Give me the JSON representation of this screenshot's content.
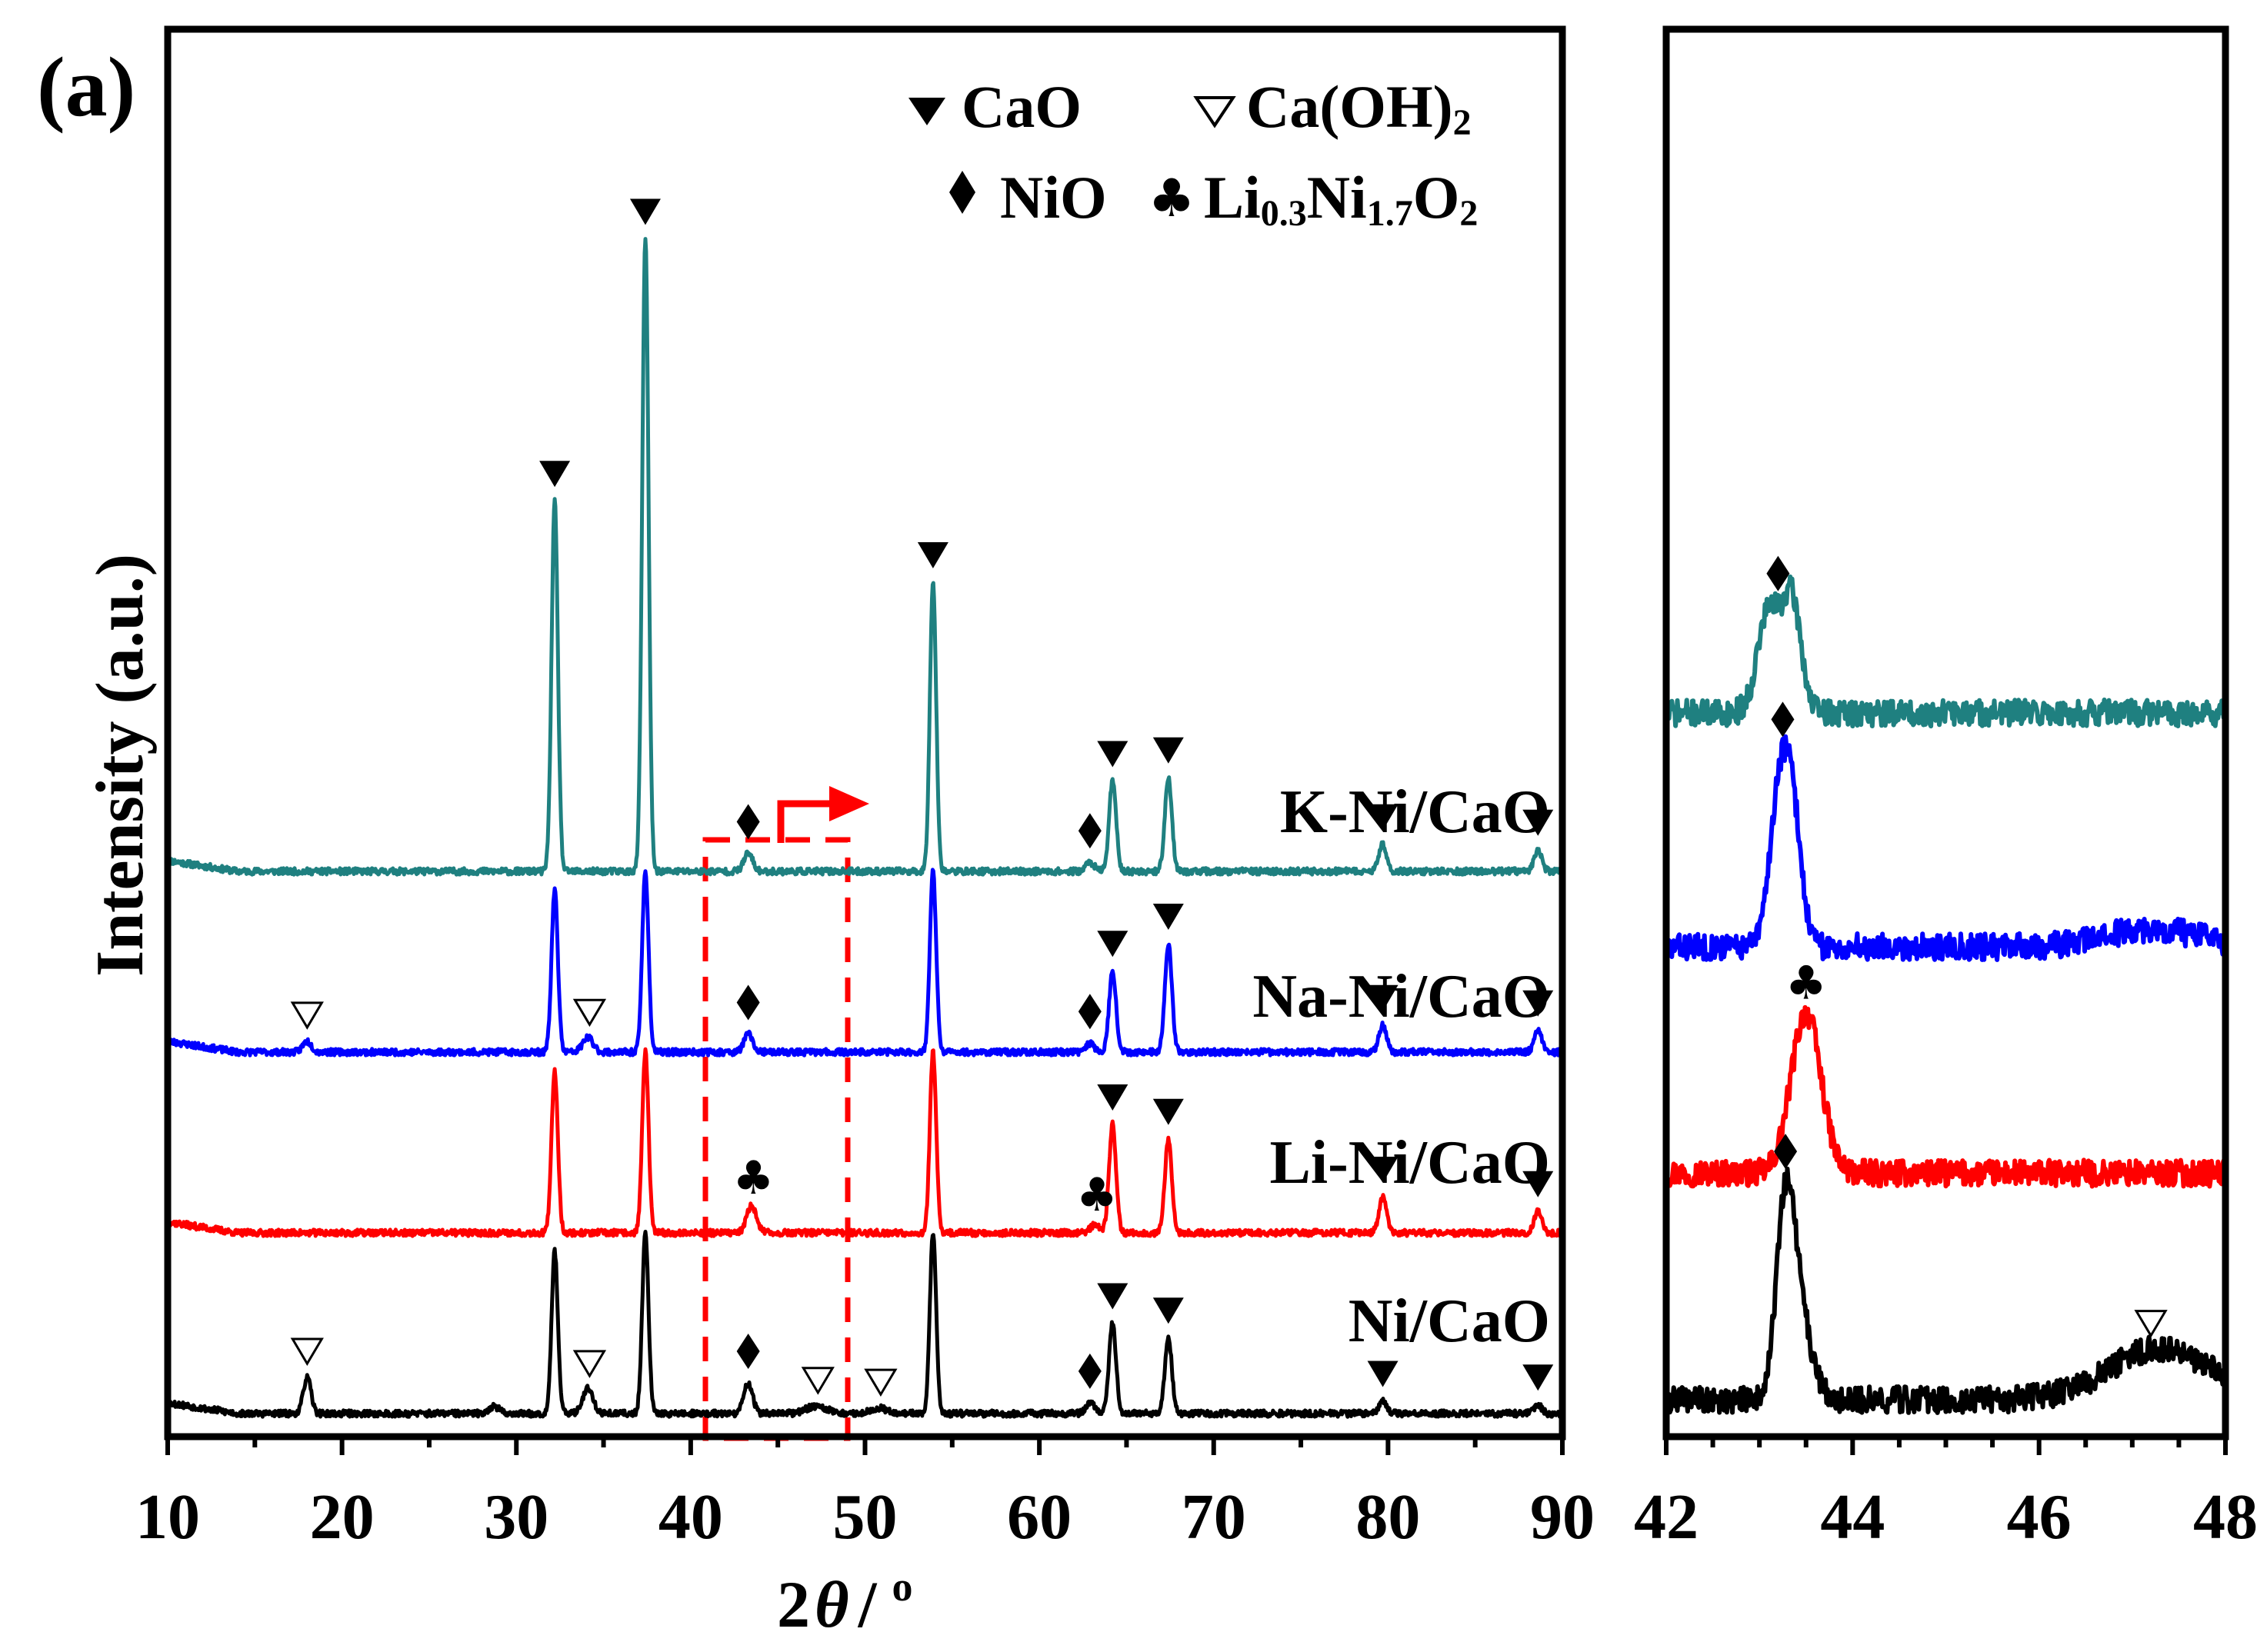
{
  "panel_label": "(a)",
  "legend": {
    "cao": "CaO",
    "caoh2": "Ca(OH)",
    "caoh2_sub": "2",
    "nio": "NiO",
    "li_a": "Li",
    "li_s1": "0.3",
    "li_b": "Ni",
    "li_s2": "1.7",
    "li_c": "O",
    "li_s3": "2"
  },
  "ylabel": "Intensity (a.u.)",
  "xlabel": {
    "num": "2",
    "theta": "θ",
    "slash": "/",
    "deg": "o"
  },
  "series_labels": {
    "k": "K-Ni/CaO",
    "na": "Na-Ni/CaO",
    "li": "Li-Ni/CaO",
    "ni": "Ni/CaO"
  },
  "colors": {
    "k": "#1f8080",
    "na": "#0000ff",
    "li": "#ff0000",
    "ni": "#000000",
    "zoom_box": "#ff0000"
  },
  "chart_data": [
    {
      "type": "line",
      "title": "",
      "xlabel": "2θ / o",
      "ylabel": "Intensity (a.u.)",
      "xlim": [
        10,
        90
      ],
      "x_ticks": [
        10,
        20,
        30,
        40,
        50,
        60,
        70,
        80,
        90
      ],
      "tick_labels": [
        "10",
        "20",
        "30",
        "40",
        "50",
        "60",
        "70",
        "80",
        "90"
      ],
      "zoom_region": [
        41,
        49
      ],
      "series": [
        {
          "name": "K-Ni/CaO",
          "key": "k",
          "offset": 3.0,
          "noise_seed": 11,
          "peaks": [
            [
              32.2,
              2.05,
              0.18
            ],
            [
              37.4,
              3.5,
              0.18
            ],
            [
              43.3,
              0.1,
              0.25
            ],
            [
              53.9,
              1.6,
              0.18
            ],
            [
              62.9,
              0.05,
              0.25
            ],
            [
              64.2,
              0.5,
              0.2
            ],
            [
              67.4,
              0.52,
              0.2
            ],
            [
              79.7,
              0.15,
              0.22
            ],
            [
              88.6,
              0.12,
              0.22
            ]
          ],
          "markers": [
            [
              "CaO",
              32.2
            ],
            [
              "CaO",
              37.4
            ],
            [
              "NiO",
              43.3
            ],
            [
              "CaO",
              53.9
            ],
            [
              "NiO",
              62.9
            ],
            [
              "CaO",
              64.2
            ],
            [
              "CaO",
              67.4
            ],
            [
              "CaO",
              79.7
            ],
            [
              "CaO",
              88.6
            ]
          ]
        },
        {
          "name": "Na-Ni/CaO",
          "key": "na",
          "offset": 2.0,
          "noise_seed": 23,
          "peaks": [
            [
              18.0,
              0.06,
              0.25
            ],
            [
              32.2,
              0.9,
              0.18
            ],
            [
              34.1,
              0.08,
              0.3
            ],
            [
              37.4,
              1.0,
              0.18
            ],
            [
              43.3,
              0.1,
              0.25
            ],
            [
              53.9,
              1.0,
              0.18
            ],
            [
              62.9,
              0.05,
              0.25
            ],
            [
              64.2,
              0.45,
              0.2
            ],
            [
              67.4,
              0.6,
              0.2
            ],
            [
              79.7,
              0.15,
              0.22
            ],
            [
              88.6,
              0.12,
              0.22
            ]
          ],
          "markers": [
            [
              "Ca(OH)2",
              18.0
            ],
            [
              "Ca(OH)2",
              34.2
            ],
            [
              "NiO",
              43.3
            ],
            [
              "NiO",
              62.9
            ],
            [
              "CaO",
              64.2
            ],
            [
              "CaO",
              67.4
            ],
            [
              "CaO",
              79.7
            ],
            [
              "CaO",
              88.6
            ]
          ]
        },
        {
          "name": "Li-Ni/CaO",
          "key": "li",
          "offset": 1.0,
          "noise_seed": 37,
          "peaks": [
            [
              32.2,
              0.9,
              0.18
            ],
            [
              37.4,
              1.0,
              0.18
            ],
            [
              43.5,
              0.15,
              0.28
            ],
            [
              53.9,
              1.0,
              0.18
            ],
            [
              63.2,
              0.05,
              0.25
            ],
            [
              64.2,
              0.6,
              0.2
            ],
            [
              67.4,
              0.52,
              0.2
            ],
            [
              79.7,
              0.2,
              0.22
            ],
            [
              88.6,
              0.12,
              0.22
            ]
          ],
          "markers": [
            [
              "Li0.3Ni1.7O2",
              43.6
            ],
            [
              "Li0.3Ni1.7O2",
              63.3
            ],
            [
              "CaO",
              64.2
            ],
            [
              "CaO",
              67.4
            ],
            [
              "CaO",
              79.7
            ],
            [
              "CaO",
              88.6
            ]
          ]
        },
        {
          "name": "Ni/CaO",
          "key": "ni",
          "offset": 0.0,
          "noise_seed": 53,
          "peaks": [
            [
              18.0,
              0.2,
              0.22
            ],
            [
              28.7,
              0.04,
              0.3
            ],
            [
              32.2,
              0.9,
              0.18
            ],
            [
              34.1,
              0.14,
              0.3
            ],
            [
              37.4,
              1.0,
              0.18
            ],
            [
              43.3,
              0.17,
              0.25
            ],
            [
              47.2,
              0.04,
              0.6
            ],
            [
              50.8,
              0.03,
              0.5
            ],
            [
              53.9,
              1.0,
              0.18
            ],
            [
              62.9,
              0.06,
              0.25
            ],
            [
              64.2,
              0.5,
              0.2
            ],
            [
              67.4,
              0.42,
              0.2
            ],
            [
              79.7,
              0.07,
              0.22
            ],
            [
              88.6,
              0.05,
              0.22
            ]
          ],
          "markers": [
            [
              "Ca(OH)2",
              18.0
            ],
            [
              "Ca(OH)2",
              34.2
            ],
            [
              "NiO",
              43.3
            ],
            [
              "Ca(OH)2",
              47.3
            ],
            [
              "Ca(OH)2",
              50.9
            ],
            [
              "NiO",
              62.9
            ],
            [
              "CaO",
              64.2
            ],
            [
              "CaO",
              67.4
            ],
            [
              "CaO",
              79.7
            ],
            [
              "CaO",
              88.6
            ]
          ]
        }
      ]
    },
    {
      "type": "line",
      "title": "",
      "xlabel": "2θ / o",
      "ylabel": "",
      "xlim": [
        42,
        48
      ],
      "x_ticks": [
        42,
        44,
        46,
        48
      ],
      "tick_labels": [
        "42",
        "44",
        "46",
        "48"
      ],
      "series": [
        {
          "name": "K-Ni/CaO",
          "key": "k",
          "offset": 4.7,
          "noise_seed": 71,
          "peaks": [
            [
              43.1,
              0.7,
              0.12
            ],
            [
              43.35,
              0.75,
              0.1
            ]
          ],
          "markers": [
            [
              "NiO",
              43.2
            ]
          ]
        },
        {
          "name": "Na-Ni/CaO",
          "key": "na",
          "offset": 3.1,
          "noise_seed": 83,
          "peaks": [
            [
              43.2,
              0.9,
              0.1
            ],
            [
              43.35,
              0.9,
              0.1
            ],
            [
              47.2,
              0.12,
              0.5
            ]
          ],
          "markers": [
            [
              "NiO",
              43.25
            ]
          ]
        },
        {
          "name": "Li-Ni/CaO",
          "key": "li",
          "offset": 1.55,
          "noise_seed": 97,
          "peaks": [
            [
              43.5,
              1.1,
              0.16
            ]
          ],
          "markers": [
            [
              "Li0.3Ni1.7O2",
              43.5
            ]
          ]
        },
        {
          "name": "Ni/CaO",
          "key": "ni",
          "offset": 0.0,
          "noise_seed": 109,
          "peaks": [
            [
              43.28,
              1.3,
              0.1
            ],
            [
              43.45,
              0.5,
              0.12
            ],
            [
              47.3,
              0.35,
              0.55
            ]
          ],
          "markers": [
            [
              "NiO",
              43.28
            ],
            [
              "Ca(OH)2",
              47.2
            ]
          ]
        }
      ]
    }
  ]
}
